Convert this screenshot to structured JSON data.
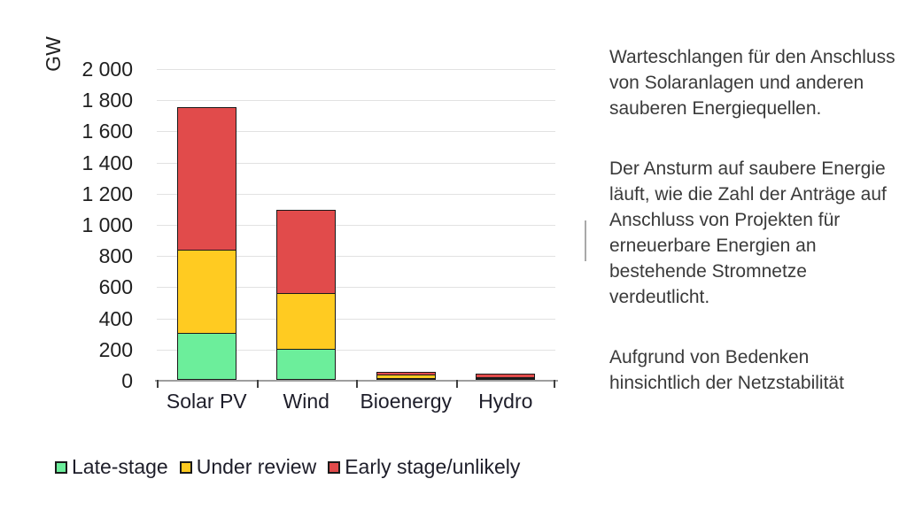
{
  "chart_data": {
    "type": "bar",
    "stacked": true,
    "ylabel": "GW",
    "categories": [
      "Solar PV",
      "Wind",
      "Bioenergy",
      "Hydro"
    ],
    "series": [
      {
        "name": "Late-stage",
        "color": "#6cee9b",
        "values": [
          300,
          200,
          3,
          2
        ]
      },
      {
        "name": "Under review",
        "color": "#ffcb21",
        "values": [
          545,
          365,
          30,
          15
        ]
      },
      {
        "name": "Early stage/unlikely",
        "color": "#e14b4b",
        "values": [
          925,
          545,
          27,
          28
        ]
      }
    ],
    "totals": [
      1770,
      1110,
      60,
      45
    ],
    "ylim": [
      0,
      2000
    ],
    "ytick_labels": [
      "0",
      "200",
      "400",
      "600",
      "800",
      "1 000",
      "1 200",
      "1 400",
      "1 600",
      "1 800",
      "2 000"
    ],
    "grid": true,
    "legend_position": "bottom"
  },
  "text_panel": {
    "paragraphs": [
      "Warteschlangen für den Anschluss von Solaranlagen und anderen sauberen Energiequellen.",
      "Der Ansturm auf saubere Energie läuft, wie die Zahl der Anträge auf Anschluss von Projekten für erneuerbare Energien an bestehende Stromnetze verdeutlicht.",
      "Aufgrund von Bedenken hinsichtlich der Netzstabilität"
    ]
  },
  "colors": {
    "late_stage": "#6cee9b",
    "under_review": "#ffcb21",
    "early_stage": "#e14b4b",
    "bar_outline": "#1a1a1a",
    "gridline": "#e2e2e2",
    "axis": "#9e9e9e",
    "text": "#1f1f1f"
  }
}
